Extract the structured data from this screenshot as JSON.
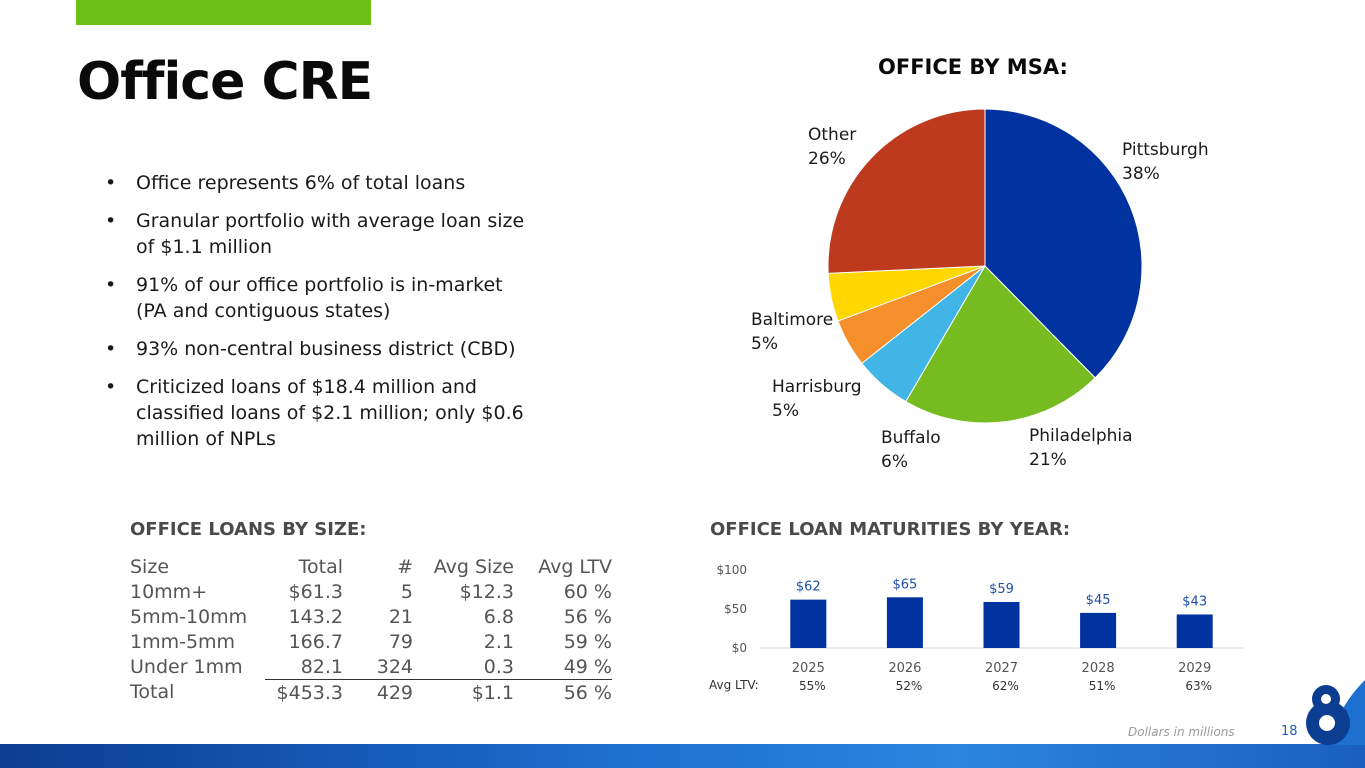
{
  "slide": {
    "title": "Office CRE",
    "bullets": [
      "Office represents 6% of total loans",
      "Granular portfolio with average loan size of $1.1 million",
      "91% of our office portfolio is in-market (PA and contiguous states)",
      "93% non-central business district (CBD)",
      "Criticized loans of $18.4 million and classified loans of $2.1 million; only $0.6 million of NPLs"
    ],
    "footer_note": "Dollars in millions",
    "page_number": "18"
  },
  "colors": {
    "accent_green": "#6cbf14",
    "pittsburgh": "#0033a0",
    "philadelphia": "#76bc21",
    "buffalo": "#41b6e6",
    "harrisburg": "#f58f2b",
    "baltimore": "#ffd700",
    "other": "#be3a1e",
    "bar": "#0033a0"
  },
  "table": {
    "title": "OFFICE LOANS BY SIZE:",
    "headers": [
      "Size",
      "Total",
      "#",
      "Avg Size",
      "Avg LTV"
    ],
    "rows": [
      [
        "10mm+",
        "$61.3",
        "5",
        "$12.3",
        "60 %"
      ],
      [
        "5mm-10mm",
        "143.2",
        "21",
        "6.8",
        "56 %"
      ],
      [
        "1mm-5mm",
        "166.7",
        "79",
        "2.1",
        "59 %"
      ],
      [
        "Under 1mm",
        "82.1",
        "324",
        "0.3",
        "49 %"
      ],
      [
        "Total",
        "$453.3",
        "429",
        "$1.1",
        "56 %"
      ]
    ]
  },
  "chart_data": [
    {
      "type": "pie",
      "title": "OFFICE BY MSA:",
      "labels": [
        "Pittsburgh",
        "Philadelphia",
        "Buffalo",
        "Harrisburg",
        "Baltimore",
        "Other"
      ],
      "values": [
        38,
        21,
        6,
        5,
        5,
        26
      ],
      "value_labels": [
        "38%",
        "21%",
        "6%",
        "5%",
        "5%",
        "26%"
      ],
      "start_angle": "12 o'clock",
      "direction": "clockwise"
    },
    {
      "type": "bar",
      "title": "OFFICE LOAN MATURITIES BY YEAR:",
      "categories": [
        "2025",
        "2026",
        "2027",
        "2028",
        "2029"
      ],
      "values": [
        62,
        65,
        59,
        45,
        43
      ],
      "data_labels": [
        "$62",
        "$65",
        "$59",
        "$45",
        "$43"
      ],
      "ylim": [
        0,
        100
      ],
      "yticks": [
        0,
        50,
        100
      ],
      "ytick_labels": [
        "$0",
        "$50",
        "$100"
      ],
      "xlabel": "",
      "ylabel": "",
      "ltv_label": "Avg LTV:",
      "ltv_values": [
        "55%",
        "52%",
        "62%",
        "51%",
        "63%"
      ]
    }
  ]
}
